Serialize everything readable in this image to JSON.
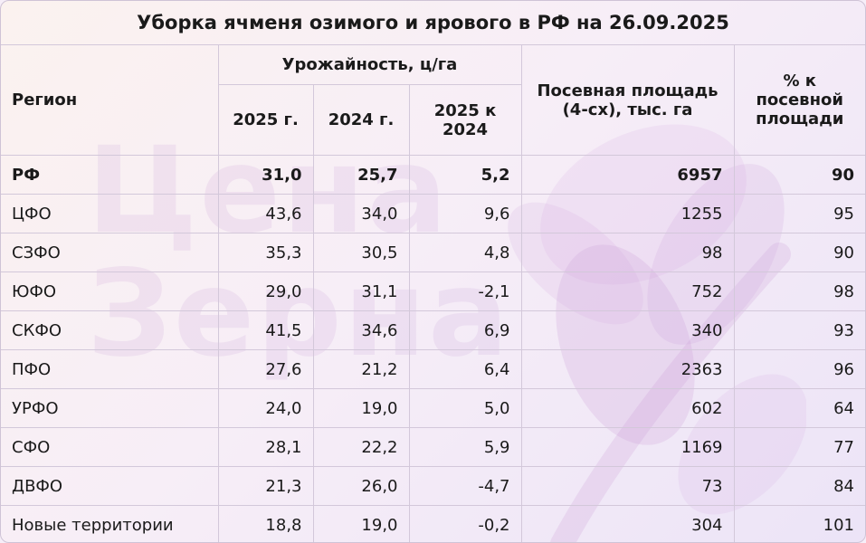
{
  "title": "Уборка ячменя озимого и ярового в РФ на 26.09.2025",
  "watermark": {
    "line1": "Цена",
    "line2": "Зерна"
  },
  "headers": {
    "region": "Регион",
    "yield_group": "Урожайность, ц/га",
    "y2025": "2025 г.",
    "y2024": "2024 г.",
    "diff": "2025 к 2024",
    "area": "Посевная площадь (4-сх), тыс. га",
    "pct": "% к посевной площади"
  },
  "rows": [
    {
      "region": "РФ",
      "y2025": "31,0",
      "y2024": "25,7",
      "diff": "5,2",
      "area": "6957",
      "pct": "90",
      "bold": true
    },
    {
      "region": "ЦФО",
      "y2025": "43,6",
      "y2024": "34,0",
      "diff": "9,6",
      "area": "1255",
      "pct": "95"
    },
    {
      "region": "СЗФО",
      "y2025": "35,3",
      "y2024": "30,5",
      "diff": "4,8",
      "area": "98",
      "pct": "90"
    },
    {
      "region": "ЮФО",
      "y2025": "29,0",
      "y2024": "31,1",
      "diff": "-2,1",
      "area": "752",
      "pct": "98"
    },
    {
      "region": "СКФО",
      "y2025": "41,5",
      "y2024": "34,6",
      "diff": "6,9",
      "area": "340",
      "pct": "93"
    },
    {
      "region": "ПФО",
      "y2025": "27,6",
      "y2024": "21,2",
      "diff": "6,4",
      "area": "2363",
      "pct": "96"
    },
    {
      "region": "УРФО",
      "y2025": "24,0",
      "y2024": "19,0",
      "diff": "5,0",
      "area": "602",
      "pct": "64"
    },
    {
      "region": "СФО",
      "y2025": "28,1",
      "y2024": "22,2",
      "diff": "5,9",
      "area": "1169",
      "pct": "77"
    },
    {
      "region": "ДВФО",
      "y2025": "21,3",
      "y2024": "26,0",
      "diff": "-4,7",
      "area": "73",
      "pct": "84"
    },
    {
      "region": "Новые территории",
      "y2025": "18,8",
      "y2024": "19,0",
      "diff": "-0,2",
      "area": "304",
      "pct": "101"
    }
  ]
}
